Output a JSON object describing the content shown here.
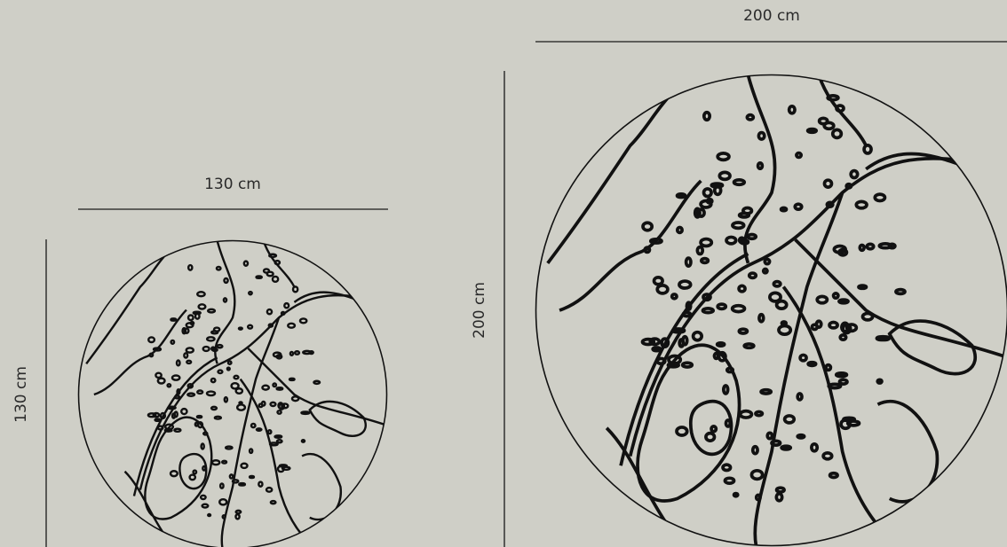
{
  "dimensions": {
    "large": {
      "width": "200 cm",
      "height": "200 cm"
    },
    "small": {
      "width": "130 cm",
      "height": "130 cm"
    }
  }
}
